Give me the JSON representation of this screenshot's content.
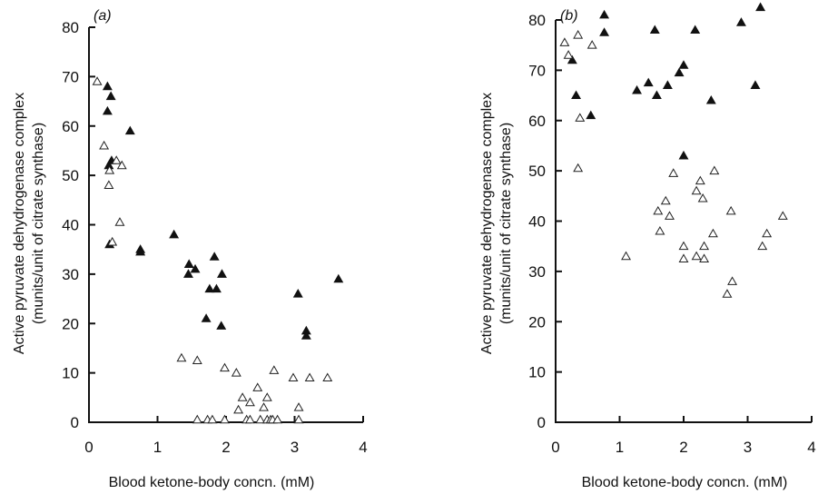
{
  "figure": {
    "marker_styles": {
      "filled": {
        "shape": "triangle-up",
        "fill": "#111111",
        "stroke": "#111111"
      },
      "open": {
        "shape": "triangle-up",
        "fill": "#ffffff",
        "stroke": "#222222"
      }
    }
  },
  "chart_data": [
    {
      "type": "scatter",
      "panel_label": "(a)",
      "xlabel": "Blood ketone-body concn. (mM)",
      "ylabel_line1": "Active pyruvate dehydrogenase complex",
      "ylabel_line2": "(munits/unit of citrate synthase)",
      "xlim": [
        0,
        4
      ],
      "ylim": [
        0,
        80
      ],
      "xticks": [
        0,
        1,
        2,
        3,
        4
      ],
      "yticks": [
        0,
        10,
        20,
        30,
        40,
        50,
        60,
        70,
        80
      ],
      "grid": false,
      "series": [
        {
          "marker": "filled",
          "points": [
            [
              0.27,
              68
            ],
            [
              0.27,
              63
            ],
            [
              0.29,
              52
            ],
            [
              0.32,
              66
            ],
            [
              0.33,
              53
            ],
            [
              0.6,
              59
            ],
            [
              0.3,
              36
            ],
            [
              0.75,
              35
            ],
            [
              0.75,
              34.5
            ],
            [
              1.24,
              38
            ],
            [
              1.46,
              32
            ],
            [
              1.45,
              30
            ],
            [
              1.55,
              31
            ],
            [
              1.83,
              33.5
            ],
            [
              1.94,
              30
            ],
            [
              1.76,
              27
            ],
            [
              1.86,
              27
            ],
            [
              1.71,
              21
            ],
            [
              1.93,
              19.5
            ],
            [
              3.05,
              26
            ],
            [
              3.17,
              18.5
            ],
            [
              3.17,
              17.5
            ],
            [
              3.64,
              29
            ]
          ]
        },
        {
          "marker": "open",
          "points": [
            [
              0.12,
              69
            ],
            [
              0.22,
              56
            ],
            [
              0.29,
              48
            ],
            [
              0.3,
              51
            ],
            [
              0.4,
              53
            ],
            [
              0.48,
              52
            ],
            [
              0.45,
              40.5
            ],
            [
              0.34,
              36.5
            ],
            [
              1.35,
              13
            ],
            [
              1.58,
              12.5
            ],
            [
              1.58,
              0.5
            ],
            [
              1.73,
              0.5
            ],
            [
              1.8,
              0.5
            ],
            [
              1.98,
              11
            ],
            [
              1.98,
              0.5
            ],
            [
              2.15,
              10
            ],
            [
              2.18,
              2.5
            ],
            [
              2.24,
              5
            ],
            [
              2.3,
              0.5
            ],
            [
              2.35,
              4
            ],
            [
              2.35,
              0.5
            ],
            [
              2.46,
              7
            ],
            [
              2.5,
              0.5
            ],
            [
              2.55,
              3
            ],
            [
              2.6,
              5
            ],
            [
              2.6,
              0.5
            ],
            [
              2.65,
              0.5
            ],
            [
              2.7,
              10.5
            ],
            [
              2.68,
              0.5
            ],
            [
              2.75,
              0.5
            ],
            [
              2.98,
              9
            ],
            [
              3.06,
              3
            ],
            [
              3.06,
              0.5
            ],
            [
              3.22,
              9
            ],
            [
              3.48,
              9
            ]
          ]
        }
      ]
    },
    {
      "type": "scatter",
      "panel_label": "(b)",
      "xlabel": "Blood ketone-body concn. (mM)",
      "ylabel_line1": "Active pyruvate dehydrogenase complex",
      "ylabel_line2": "(munits/unit of citrate synthase)",
      "xlim": [
        0,
        4
      ],
      "ylim": [
        0,
        80
      ],
      "xticks": [
        0,
        1,
        2,
        3,
        4
      ],
      "yticks": [
        0,
        10,
        20,
        30,
        40,
        50,
        60,
        70,
        80
      ],
      "grid": false,
      "series": [
        {
          "marker": "filled",
          "points": [
            [
              0.26,
              72
            ],
            [
              0.32,
              65
            ],
            [
              0.55,
              61
            ],
            [
              0.76,
              81
            ],
            [
              0.76,
              77.5
            ],
            [
              1.27,
              66
            ],
            [
              1.45,
              67.5
            ],
            [
              1.55,
              78
            ],
            [
              1.58,
              65
            ],
            [
              1.75,
              67
            ],
            [
              1.93,
              69.5
            ],
            [
              2.0,
              71
            ],
            [
              2.18,
              78
            ],
            [
              2.0,
              53
            ],
            [
              2.43,
              64
            ],
            [
              2.9,
              79.5
            ],
            [
              3.12,
              67
            ],
            [
              3.2,
              82.5
            ]
          ]
        },
        {
          "marker": "open",
          "points": [
            [
              0.14,
              75.5
            ],
            [
              0.2,
              73
            ],
            [
              0.35,
              77
            ],
            [
              0.38,
              60.5
            ],
            [
              0.35,
              50.5
            ],
            [
              0.57,
              75
            ],
            [
              1.1,
              33
            ],
            [
              1.6,
              42
            ],
            [
              1.63,
              38
            ],
            [
              1.72,
              44
            ],
            [
              1.78,
              41
            ],
            [
              1.84,
              49.5
            ],
            [
              2.0,
              35
            ],
            [
              2.0,
              32.5
            ],
            [
              2.2,
              46
            ],
            [
              2.2,
              33
            ],
            [
              2.26,
              48
            ],
            [
              2.3,
              44.5
            ],
            [
              2.32,
              32.5
            ],
            [
              2.32,
              35
            ],
            [
              2.48,
              50
            ],
            [
              2.46,
              37.5
            ],
            [
              2.68,
              25.5
            ],
            [
              2.74,
              42
            ],
            [
              2.76,
              28
            ],
            [
              3.23,
              35
            ],
            [
              3.3,
              37.5
            ],
            [
              3.55,
              41
            ]
          ]
        }
      ]
    }
  ]
}
